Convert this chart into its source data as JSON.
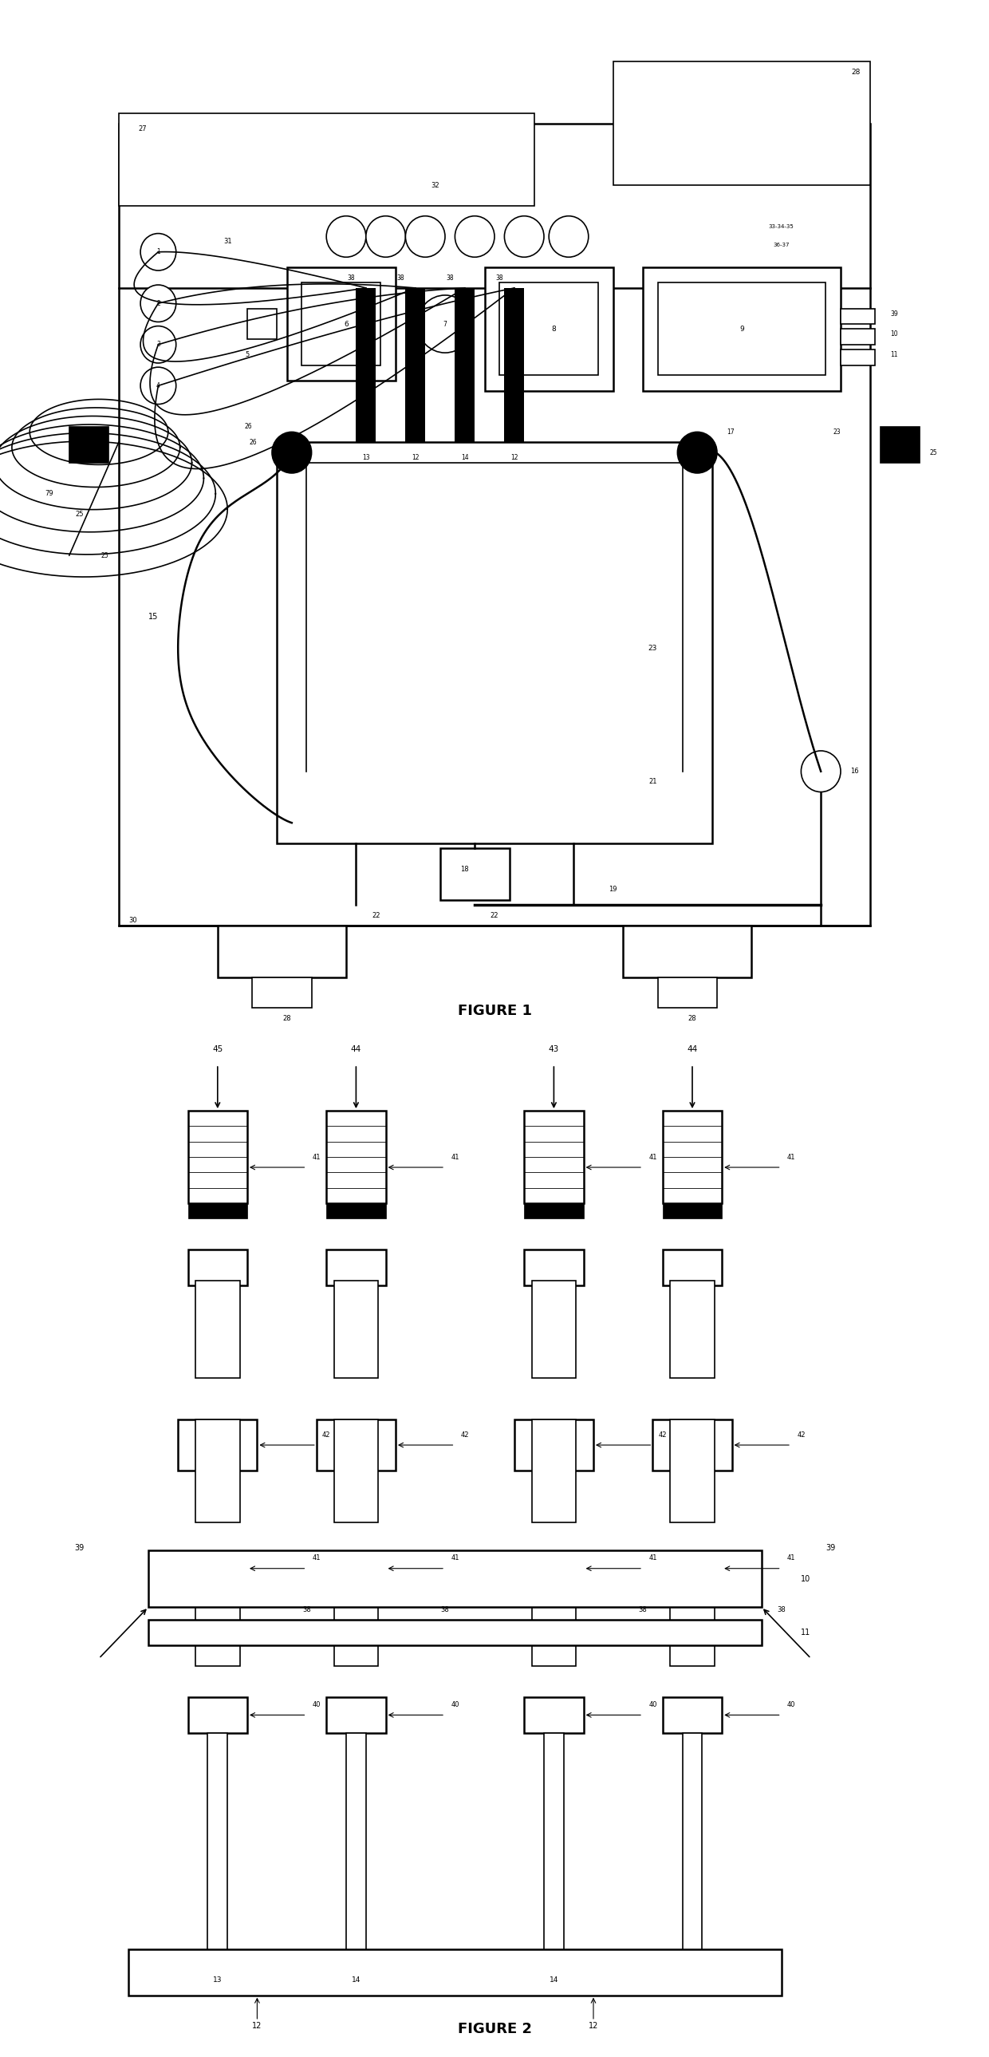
{
  "figure1_title": "FIGURE 1",
  "figure2_title": "FIGURE 2",
  "bg_color": "#ffffff",
  "line_color": "#000000",
  "fig_width": 12.4,
  "fig_height": 25.78,
  "lw": 1.2,
  "lw2": 1.8,
  "lw3": 2.5
}
